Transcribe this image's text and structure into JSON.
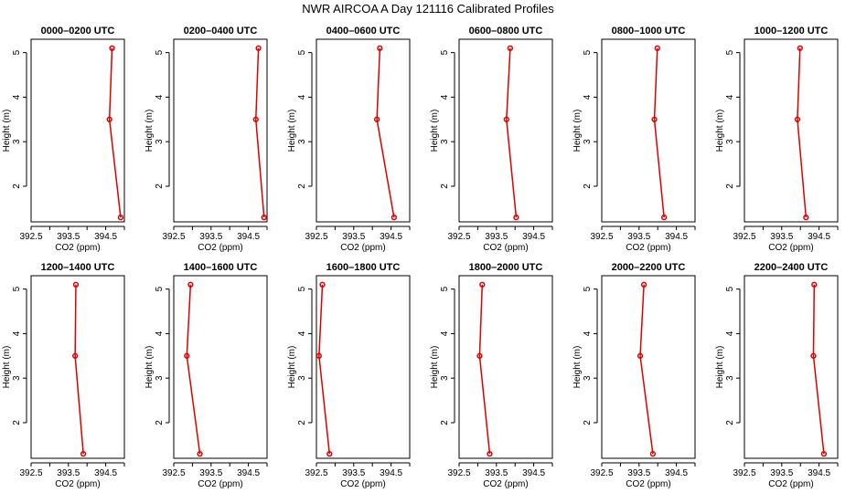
{
  "figure_title": "NWR AIRCOA A  Day 121116  Calibrated Profiles",
  "chart_data": [
    {
      "type": "line",
      "title": "0000–0200 UTC",
      "heights": [
        5.1,
        3.5,
        1.3
      ],
      "values": [
        394.67,
        394.6,
        394.9
      ],
      "xlabel": "CO2 (ppm)",
      "ylabel": "Height (m)",
      "xlim": [
        392.5,
        395.0
      ],
      "ylim": [
        1.2,
        5.3
      ],
      "xticks": [
        "392.5",
        "393.5",
        "394.5"
      ],
      "yticks": [
        "2",
        "3",
        "4",
        "5"
      ]
    },
    {
      "type": "line",
      "title": "0200–0400 UTC",
      "heights": [
        5.1,
        3.5,
        1.3
      ],
      "values": [
        394.77,
        394.7,
        394.92
      ],
      "xlabel": "CO2 (ppm)",
      "ylabel": "Height (m)",
      "xlim": [
        392.5,
        395.0
      ],
      "ylim": [
        1.2,
        5.3
      ],
      "xticks": [
        "392.5",
        "393.5",
        "394.5"
      ],
      "yticks": [
        "2",
        "3",
        "4",
        "5"
      ]
    },
    {
      "type": "line",
      "title": "0400–0600 UTC",
      "heights": [
        5.1,
        3.5,
        1.3
      ],
      "values": [
        394.2,
        394.12,
        394.58
      ],
      "xlabel": "CO2 (ppm)",
      "ylabel": "Height (m)",
      "xlim": [
        392.5,
        395.0
      ],
      "ylim": [
        1.2,
        5.3
      ],
      "xticks": [
        "392.5",
        "393.5",
        "394.5"
      ],
      "yticks": [
        "2",
        "3",
        "4",
        "5"
      ]
    },
    {
      "type": "line",
      "title": "0600–0800 UTC",
      "heights": [
        5.1,
        3.5,
        1.3
      ],
      "values": [
        393.87,
        393.77,
        394.03
      ],
      "xlabel": "CO2 (ppm)",
      "ylabel": "Height (m)",
      "xlim": [
        392.5,
        395.0
      ],
      "ylim": [
        1.2,
        5.3
      ],
      "xticks": [
        "392.5",
        "393.5",
        "394.5"
      ],
      "yticks": [
        "2",
        "3",
        "4",
        "5"
      ]
    },
    {
      "type": "line",
      "title": "0800–1000 UTC",
      "heights": [
        5.1,
        3.5,
        1.3
      ],
      "values": [
        393.99,
        393.91,
        394.17
      ],
      "xlabel": "CO2 (ppm)",
      "ylabel": "Height (m)",
      "xlim": [
        392.5,
        395.0
      ],
      "ylim": [
        1.2,
        5.3
      ],
      "xticks": [
        "392.5",
        "393.5",
        "394.5"
      ],
      "yticks": [
        "2",
        "3",
        "4",
        "5"
      ]
    },
    {
      "type": "line",
      "title": "1000–1200 UTC",
      "heights": [
        5.1,
        3.5,
        1.3
      ],
      "values": [
        393.99,
        393.92,
        394.15
      ],
      "xlabel": "CO2 (ppm)",
      "ylabel": "Height (m)",
      "xlim": [
        392.5,
        395.0
      ],
      "ylim": [
        1.2,
        5.3
      ],
      "xticks": [
        "392.5",
        "393.5",
        "394.5"
      ],
      "yticks": [
        "2",
        "3",
        "4",
        "5"
      ]
    },
    {
      "type": "line",
      "title": "1200–1400 UTC",
      "heights": [
        5.1,
        3.5,
        1.3
      ],
      "values": [
        393.7,
        393.68,
        393.9
      ],
      "xlabel": "CO2 (ppm)",
      "ylabel": "Height (m)",
      "xlim": [
        392.5,
        395.0
      ],
      "ylim": [
        1.2,
        5.3
      ],
      "xticks": [
        "392.5",
        "393.5",
        "394.5"
      ],
      "yticks": [
        "2",
        "3",
        "4",
        "5"
      ]
    },
    {
      "type": "line",
      "title": "1400–1600 UTC",
      "heights": [
        5.1,
        3.5,
        1.3
      ],
      "values": [
        392.95,
        392.85,
        393.2
      ],
      "xlabel": "CO2 (ppm)",
      "ylabel": "Height (m)",
      "xlim": [
        392.5,
        395.0
      ],
      "ylim": [
        1.2,
        5.3
      ],
      "xticks": [
        "392.5",
        "393.5",
        "394.5"
      ],
      "yticks": [
        "2",
        "3",
        "4",
        "5"
      ]
    },
    {
      "type": "line",
      "title": "1600–1800 UTC",
      "heights": [
        5.1,
        3.5,
        1.3
      ],
      "values": [
        392.66,
        392.57,
        392.85
      ],
      "xlabel": "CO2 (ppm)",
      "ylabel": "Height (m)",
      "xlim": [
        392.5,
        395.0
      ],
      "ylim": [
        1.2,
        5.3
      ],
      "xticks": [
        "392.5",
        "393.5",
        "394.5"
      ],
      "yticks": [
        "2",
        "3",
        "4",
        "5"
      ]
    },
    {
      "type": "line",
      "title": "1800–2000 UTC",
      "heights": [
        5.1,
        3.5,
        1.3
      ],
      "values": [
        393.12,
        393.05,
        393.32
      ],
      "xlabel": "CO2 (ppm)",
      "ylabel": "Height (m)",
      "xlim": [
        392.5,
        395.0
      ],
      "ylim": [
        1.2,
        5.3
      ],
      "xticks": [
        "392.5",
        "393.5",
        "394.5"
      ],
      "yticks": [
        "2",
        "3",
        "4",
        "5"
      ]
    },
    {
      "type": "line",
      "title": "2000–2200 UTC",
      "heights": [
        5.1,
        3.5,
        1.3
      ],
      "values": [
        393.63,
        393.53,
        393.87
      ],
      "xlabel": "CO2 (ppm)",
      "ylabel": "Height (m)",
      "xlim": [
        392.5,
        395.0
      ],
      "ylim": [
        1.2,
        5.3
      ],
      "xticks": [
        "392.5",
        "393.5",
        "394.5"
      ],
      "yticks": [
        "2",
        "3",
        "4",
        "5"
      ]
    },
    {
      "type": "line",
      "title": "2200–2400 UTC",
      "heights": [
        5.1,
        3.5,
        1.3
      ],
      "values": [
        394.37,
        394.35,
        394.63
      ],
      "xlabel": "CO2 (ppm)",
      "ylabel": "Height (m)",
      "xlim": [
        392.5,
        395.0
      ],
      "ylim": [
        1.2,
        5.3
      ],
      "xticks": [
        "392.5",
        "393.5",
        "394.5"
      ],
      "yticks": [
        "2",
        "3",
        "4",
        "5"
      ]
    }
  ]
}
